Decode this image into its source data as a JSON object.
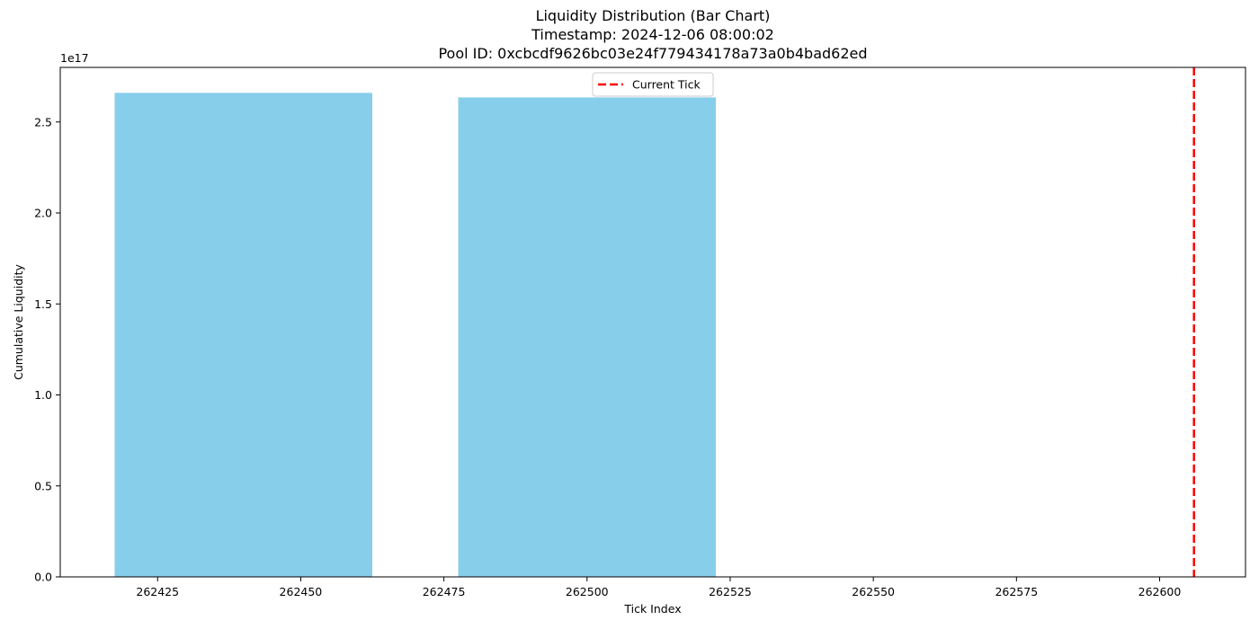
{
  "chart_data": {
    "type": "bar",
    "title_lines": [
      "Liquidity Distribution (Bar Chart)",
      "Timestamp: 2024-12-06 08:00:02",
      "Pool ID: 0xcbcdf9626bc03e24f779434178a73a0b4bad62ed"
    ],
    "xlabel": "Tick Index",
    "ylabel": "Cumulative Liquidity",
    "y_offset_label": "1e17",
    "xlim": [
      262408,
      262615
    ],
    "ylim": [
      0,
      2.8
    ],
    "x_ticks": [
      262425,
      262450,
      262475,
      262500,
      262525,
      262550,
      262575,
      262600
    ],
    "y_ticks": [
      0.0,
      0.5,
      1.0,
      1.5,
      2.0,
      2.5
    ],
    "y_tick_labels": [
      "0.0",
      "0.5",
      "1.0",
      "1.5",
      "2.0",
      "2.5"
    ],
    "bars": [
      {
        "x": 262440,
        "width": 45,
        "value": 2.66
      },
      {
        "x": 262500,
        "width": 45,
        "value": 2.635
      }
    ],
    "bar_color": "#87CEEB",
    "current_tick": 262606,
    "current_tick_color": "#ff0000",
    "legend": {
      "label": "Current Tick",
      "placement": "upper center"
    },
    "grid": false
  }
}
